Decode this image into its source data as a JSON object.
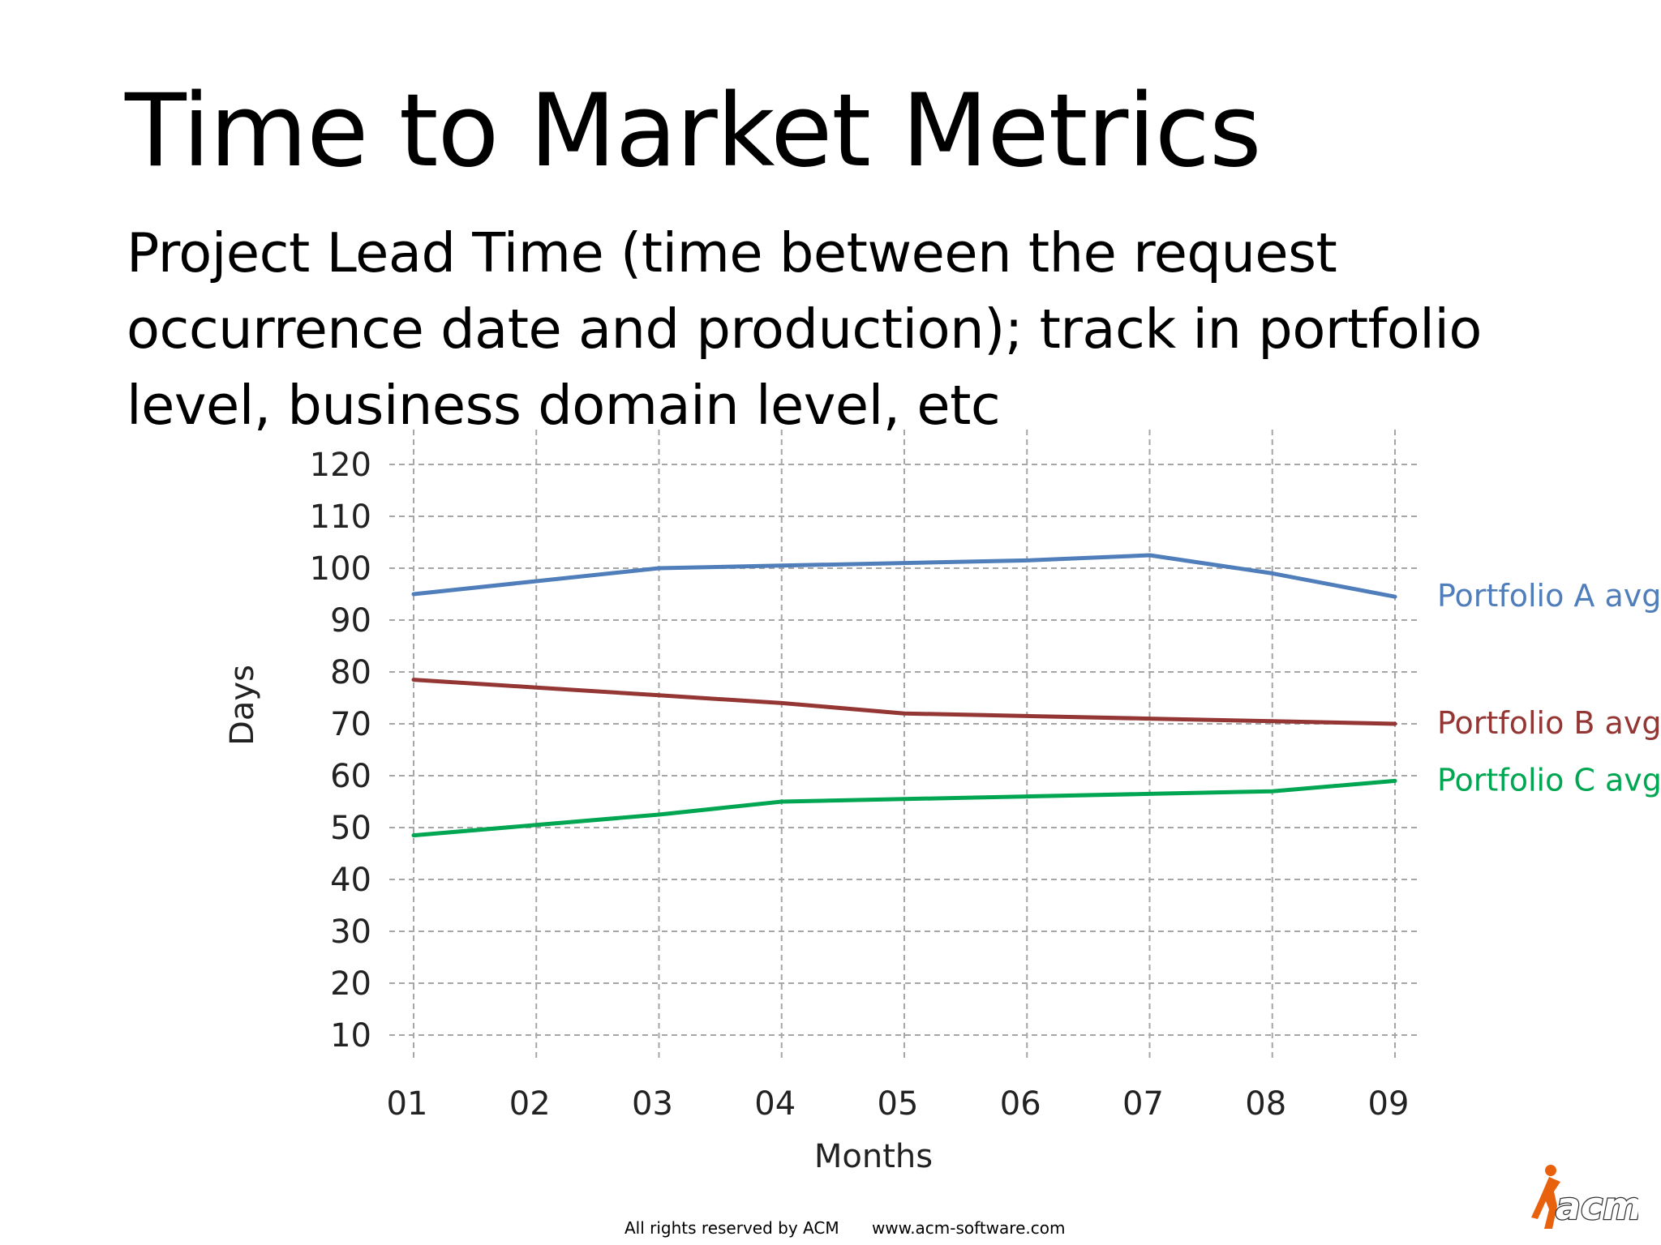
{
  "title": "Time to Market Metrics",
  "subtitle": "Project Lead Time (time between the request occurrence date and production); track in portfolio level, business domain level, etc",
  "footer": {
    "rights": "All rights reserved by ACM",
    "website": "www.acm-software.com"
  },
  "logo": {
    "text": "acm",
    "colors": {
      "figure": "#e8620e",
      "text": "#ffffff",
      "outline": "#333333"
    }
  },
  "chart_data": {
    "type": "line",
    "categories": [
      "01",
      "02",
      "03",
      "04",
      "05",
      "06",
      "07",
      "08",
      "09"
    ],
    "xlabel": "Months",
    "ylabel": "Days",
    "yticks": [
      10,
      20,
      30,
      40,
      50,
      60,
      70,
      80,
      90,
      100,
      110,
      120
    ],
    "ylim": [
      10,
      120
    ],
    "grid": true,
    "legend": "right, at line ends",
    "series": [
      {
        "name": "Portfolio A avg",
        "color": "#4f7ebb",
        "values": [
          95,
          97.5,
          100,
          100.5,
          101,
          101.5,
          102.5,
          99,
          94.5
        ]
      },
      {
        "name": "Portfolio B avg",
        "color": "#943634",
        "values": [
          78.5,
          77,
          75.5,
          74,
          72,
          71.5,
          71,
          70.5,
          70
        ]
      },
      {
        "name": "Portfolio C avg",
        "color": "#00a651",
        "values": [
          48.5,
          50.5,
          52.5,
          55,
          55.5,
          56,
          56.5,
          57,
          59
        ]
      }
    ]
  }
}
